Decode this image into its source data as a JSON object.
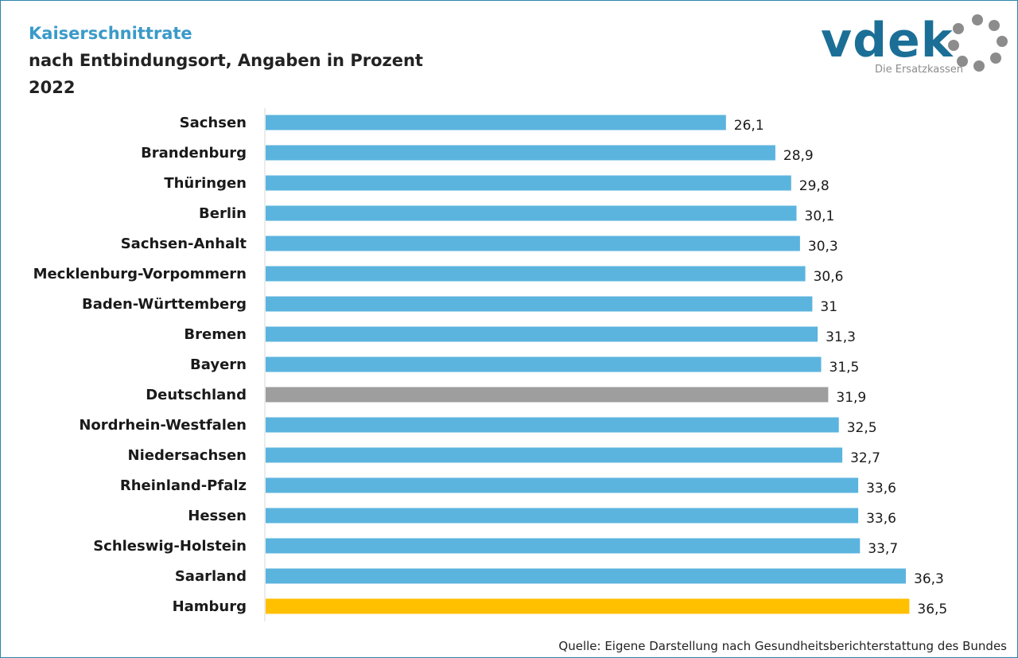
{
  "header": {
    "title": "Kaiserschnittrate",
    "subtitle": "nach Entbindungsort, Angaben in Prozent",
    "year": "2022"
  },
  "logo": {
    "wordmark": "vdek",
    "tagline": "Die Ersatzkassen"
  },
  "source": "Quelle: Eigene Darstellung nach Gesundheitsberichterstattung des Bundes",
  "colors": {
    "default_bar": "#5bb4de",
    "national_bar": "#9e9e9e",
    "highlight_bar": "#ffc000",
    "title": "#3a9ac9",
    "logo": "#1b6f97"
  },
  "chart_data": {
    "type": "bar",
    "orientation": "horizontal",
    "title": "Kaiserschnittrate",
    "xlabel": "",
    "ylabel": "",
    "xlim": [
      0,
      37
    ],
    "grid": false,
    "categories": [
      "Sachsen",
      "Brandenburg",
      "Thüringen",
      "Berlin",
      "Sachsen-Anhalt",
      "Mecklenburg-Vorpommern",
      "Baden-Württemberg",
      "Bremen",
      "Bayern",
      "Deutschland",
      "Nordrhein-Westfalen",
      "Niedersachsen",
      "Rheinland-Pfalz",
      "Hessen",
      "Schleswig-Holstein",
      "Saarland",
      "Hamburg"
    ],
    "values": [
      26.1,
      28.9,
      29.8,
      30.1,
      30.3,
      30.6,
      31,
      31.3,
      31.5,
      31.9,
      32.5,
      32.7,
      33.6,
      33.6,
      33.7,
      36.3,
      36.5
    ],
    "value_labels": [
      "26,1",
      "28,9",
      "29,8",
      "30,1",
      "30,3",
      "30,6",
      "31",
      "31,3",
      "31,5",
      "31,9",
      "32,5",
      "32,7",
      "33,6",
      "33,6",
      "33,7",
      "36,3",
      "36,5"
    ],
    "bar_kinds": [
      "state",
      "state",
      "state",
      "state",
      "state",
      "state",
      "state",
      "state",
      "state",
      "national",
      "state",
      "state",
      "state",
      "state",
      "state",
      "state",
      "highlight"
    ]
  }
}
